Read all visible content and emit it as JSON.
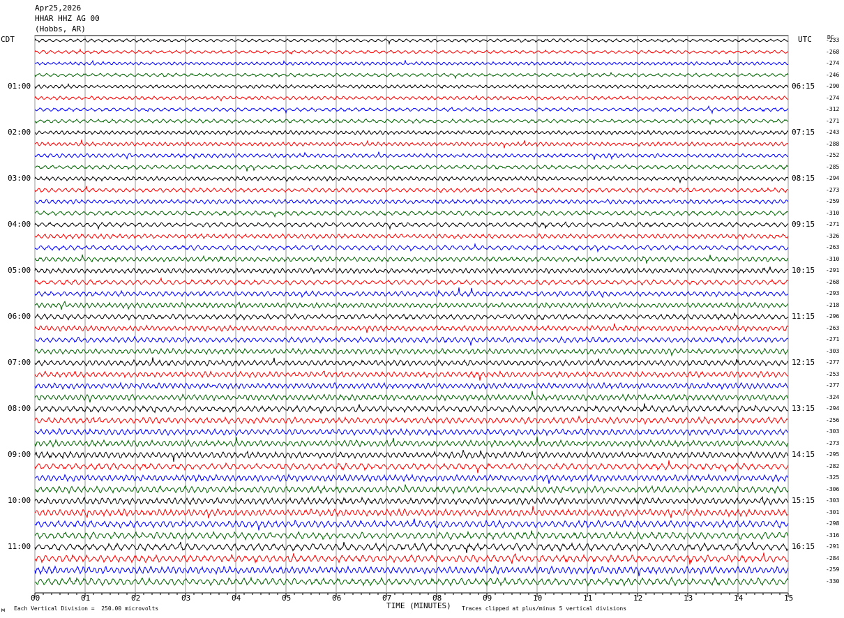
{
  "header": {
    "date": "Apr25,2026",
    "station": "HHAR HHZ AG 00",
    "location": "(Hobbs, AR)"
  },
  "left_zone_label": "CDT",
  "right_zone_label": "UTC",
  "dc_label": "DC",
  "footer": {
    "left_mark": "м",
    "scale_text": "Each Vertical Division =  250.00 microvolts",
    "x_axis_title": "TIME (MINUTES)",
    "clip_text": "Traces clipped at plus/minus 5 vertical divisions"
  },
  "chart_data": {
    "type": "line",
    "title": "HHAR HHZ AG 00",
    "xlabel": "TIME (MINUTES)",
    "xlim": [
      0,
      15
    ],
    "x_ticks": [
      "00",
      "01",
      "02",
      "03",
      "04",
      "05",
      "06",
      "07",
      "08",
      "09",
      "10",
      "11",
      "12",
      "13",
      "14",
      "15"
    ],
    "trace_count": 48,
    "trace_colors": [
      "#000000",
      "#ff0000",
      "#0000ff",
      "#006400"
    ],
    "left_hour_labels": [
      "01:00",
      "02:00",
      "03:00",
      "04:00",
      "05:00",
      "06:00",
      "07:00",
      "08:00",
      "09:00",
      "10:00",
      "11:00"
    ],
    "right_hour_labels": [
      "06:15",
      "07:15",
      "08:15",
      "09:15",
      "10:15",
      "11:15",
      "12:15",
      "13:15",
      "14:15",
      "15:15",
      "16:15"
    ],
    "dc_offsets": [
      -233,
      -268,
      -274,
      -246,
      -290,
      -274,
      -312,
      -271,
      -243,
      -288,
      -252,
      -285,
      -294,
      -273,
      -259,
      -310,
      -271,
      -326,
      -263,
      -310,
      -291,
      -268,
      -293,
      -218,
      -296,
      -263,
      -271,
      -303,
      -277,
      -253,
      -277,
      -324,
      -294,
      -256,
      -303,
      -273,
      -295,
      -282,
      -325,
      -306,
      -303,
      -301,
      -298,
      -316,
      -291,
      -284,
      -259,
      -330
    ],
    "grid": true
  }
}
